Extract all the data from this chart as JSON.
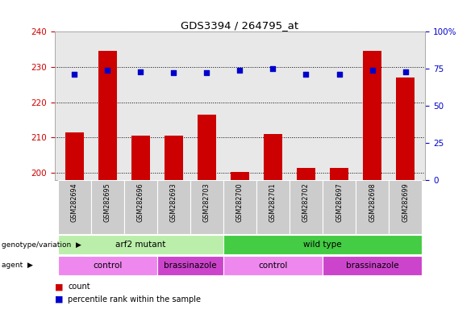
{
  "title": "GDS3394 / 264795_at",
  "samples": [
    "GSM282694",
    "GSM282695",
    "GSM282696",
    "GSM282693",
    "GSM282703",
    "GSM282700",
    "GSM282701",
    "GSM282702",
    "GSM282697",
    "GSM282698",
    "GSM282699"
  ],
  "bar_values": [
    211.5,
    234.5,
    210.5,
    210.5,
    216.5,
    200.3,
    211.0,
    201.5,
    201.5,
    234.5,
    227.0
  ],
  "percentile_values": [
    71,
    74,
    73,
    72,
    72,
    74,
    75,
    71,
    71,
    74,
    73
  ],
  "ymin": 198,
  "ymax": 240,
  "y_ticks": [
    200,
    210,
    220,
    230,
    240
  ],
  "y2min": 0,
  "y2max": 100,
  "y2_ticks": [
    0,
    25,
    50,
    75,
    100
  ],
  "bar_color": "#cc0000",
  "dot_color": "#0000cc",
  "bar_width": 0.55,
  "groups": [
    {
      "label": "arf2 mutant",
      "start": 0,
      "end": 4,
      "color": "#bbeeaa"
    },
    {
      "label": "wild type",
      "start": 5,
      "end": 10,
      "color": "#44cc44"
    }
  ],
  "agents": [
    {
      "label": "control",
      "start": 0,
      "end": 2,
      "color": "#ee88ee"
    },
    {
      "label": "brassinazole",
      "start": 3,
      "end": 4,
      "color": "#cc44cc"
    },
    {
      "label": "control",
      "start": 5,
      "end": 7,
      "color": "#ee88ee"
    },
    {
      "label": "brassinazole",
      "start": 8,
      "end": 10,
      "color": "#cc44cc"
    }
  ],
  "legend_count_color": "#cc0000",
  "legend_pct_color": "#0000cc",
  "left_yaxis_color": "#cc0000",
  "right_yaxis_color": "#0000cc",
  "grid_color": "#000000",
  "plot_bg": "#e8e8e8",
  "fig_bg": "#ffffff"
}
